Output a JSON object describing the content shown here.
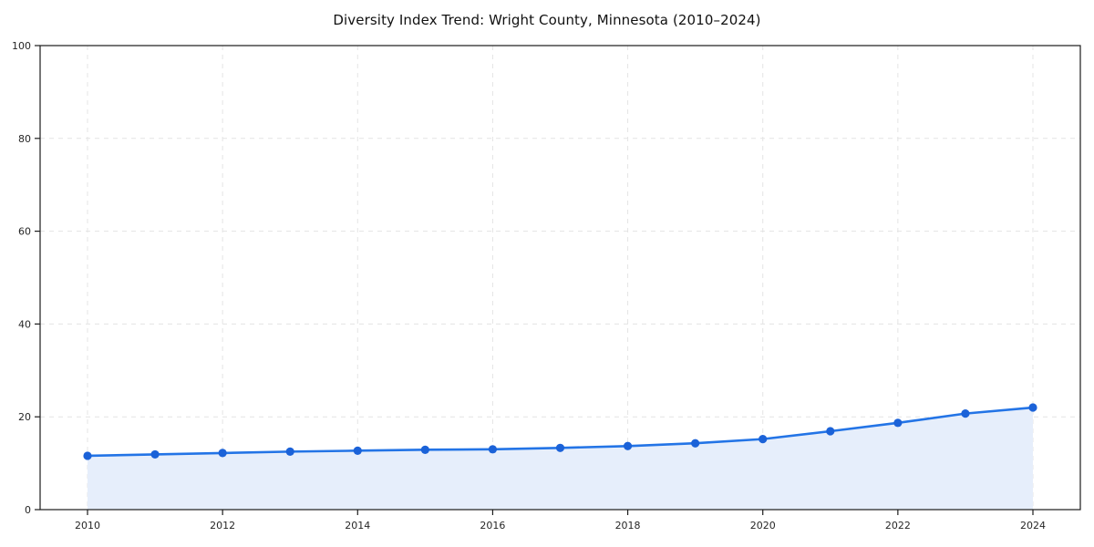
{
  "chart_data": {
    "type": "area",
    "title": "Diversity Index Trend: Wright County, Minnesota (2010–2024)",
    "x": [
      2010,
      2011,
      2012,
      2013,
      2014,
      2015,
      2016,
      2017,
      2018,
      2019,
      2020,
      2021,
      2022,
      2023,
      2024
    ],
    "series": [
      {
        "name": "Diversity Index",
        "values": [
          11.6,
          11.9,
          12.2,
          12.5,
          12.7,
          12.9,
          13.0,
          13.3,
          13.7,
          14.3,
          15.2,
          16.9,
          18.7,
          20.7,
          22.0
        ]
      }
    ],
    "xlabel": "",
    "ylabel": "",
    "ylim": [
      0,
      100
    ],
    "yticks": [
      0,
      20,
      40,
      60,
      80,
      100
    ],
    "xticks": [
      2010,
      2012,
      2014,
      2016,
      2018,
      2020,
      2022,
      2024
    ],
    "grid": true,
    "grid_style": "dashed",
    "legend": "none",
    "colors": {
      "line": "#2374e6",
      "marker": "#1b62d8",
      "fill": "#e6eefb",
      "grid": "#e4e4e4",
      "axis": "#1c1c1c",
      "text": "#262626",
      "title": "#111111",
      "background": "#ffffff"
    }
  }
}
